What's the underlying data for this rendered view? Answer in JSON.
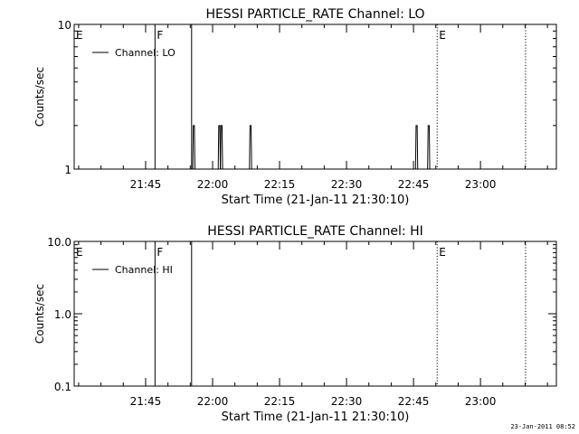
{
  "footer_timestamp": "23-Jan-2011 08:52",
  "chart_data": [
    {
      "type": "line",
      "title": "HESSI PARTICLE_RATE Channel: LO",
      "xlabel": "Start Time (21-Jan-11 21:30:10)",
      "ylabel": "Counts/sec",
      "yscale": "log",
      "ylim": [
        1,
        10
      ],
      "ytick_labels": [
        {
          "value": 1,
          "label": "1"
        },
        {
          "value": 10,
          "label": "10"
        }
      ],
      "xlim_minutes": [
        0,
        108
      ],
      "xticks": [
        {
          "minute": 16,
          "label": "21:45"
        },
        {
          "minute": 31,
          "label": "22:00"
        },
        {
          "minute": 46,
          "label": "22:15"
        },
        {
          "minute": 61,
          "label": "22:30"
        },
        {
          "minute": 76,
          "label": "22:45"
        },
        {
          "minute": 91,
          "label": "23:00"
        }
      ],
      "legend": {
        "position": "top-left",
        "entries": [
          "Channel: LO"
        ]
      },
      "markers": [
        {
          "label": "E",
          "minute": 0,
          "style": "none"
        },
        {
          "label": "F",
          "minute": 18.1,
          "style": "solid"
        },
        {
          "label": "",
          "minute": 26.3,
          "style": "solid"
        },
        {
          "label": "E",
          "minute": 81.3,
          "style": "dotted"
        },
        {
          "label": "",
          "minute": 101.1,
          "style": "dotted"
        }
      ],
      "series": [
        {
          "values": [
            {
              "minute": 26.8,
              "y": 2
            },
            {
              "minute": 32.5,
              "y": 2
            },
            {
              "minute": 33.0,
              "y": 2
            },
            {
              "minute": 39.5,
              "y": 2
            },
            {
              "minute": 76.7,
              "y": 2
            },
            {
              "minute": 79.4,
              "y": 2
            }
          ]
        }
      ]
    },
    {
      "type": "line",
      "title": "HESSI PARTICLE_RATE Channel: HI",
      "xlabel": "Start Time (21-Jan-11 21:30:10)",
      "ylabel": "Counts/sec",
      "yscale": "log",
      "ylim": [
        0.1,
        10
      ],
      "ytick_labels": [
        {
          "value": 0.1,
          "label": "0.1"
        },
        {
          "value": 1,
          "label": "1.0"
        },
        {
          "value": 10,
          "label": "10.0"
        }
      ],
      "xlim_minutes": [
        0,
        108
      ],
      "xticks": [
        {
          "minute": 16,
          "label": "21:45"
        },
        {
          "minute": 31,
          "label": "22:00"
        },
        {
          "minute": 46,
          "label": "22:15"
        },
        {
          "minute": 61,
          "label": "22:30"
        },
        {
          "minute": 76,
          "label": "22:45"
        },
        {
          "minute": 91,
          "label": "23:00"
        }
      ],
      "legend": {
        "position": "top-left",
        "entries": [
          "Channel: HI"
        ]
      },
      "markers": [
        {
          "label": "E",
          "minute": 0,
          "style": "none"
        },
        {
          "label": "F",
          "minute": 18.1,
          "style": "solid"
        },
        {
          "label": "",
          "minute": 26.3,
          "style": "solid"
        },
        {
          "label": "E",
          "minute": 81.3,
          "style": "dotted"
        },
        {
          "label": "",
          "minute": 101.1,
          "style": "dotted"
        }
      ],
      "series": [
        {
          "values": []
        }
      ]
    }
  ]
}
